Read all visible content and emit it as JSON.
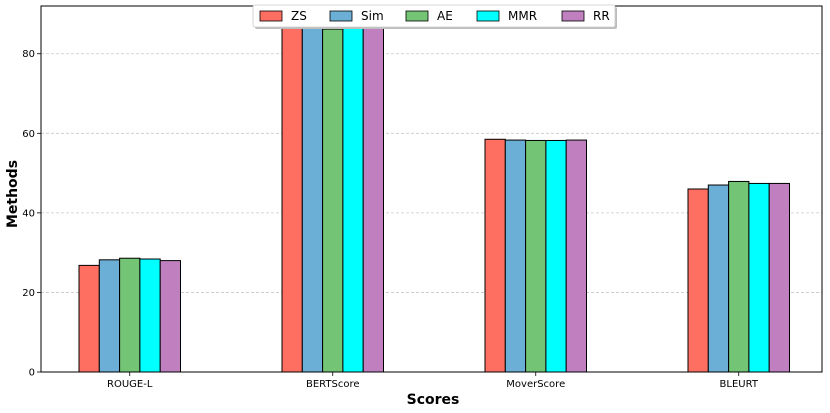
{
  "chart_data": {
    "type": "bar",
    "title": "",
    "xlabel": "Scores",
    "ylabel": "Methods",
    "categories": [
      "ROUGE-L",
      "BERTScore",
      "MoverScore",
      "BLEURT"
    ],
    "series": [
      {
        "name": "ZS",
        "color": "#ff6f61",
        "values": [
          26.8,
          88.0,
          58.5,
          46.0
        ]
      },
      {
        "name": "Sim",
        "color": "#6baed6",
        "values": [
          28.2,
          86.8,
          58.3,
          47.0
        ]
      },
      {
        "name": "AE",
        "color": "#74c476",
        "values": [
          28.6,
          86.2,
          58.2,
          47.9
        ]
      },
      {
        "name": "MMR",
        "color": "#00ffff",
        "values": [
          28.4,
          88.0,
          58.2,
          47.4
        ]
      },
      {
        "name": "RR",
        "color": "#c080c0",
        "values": [
          28.0,
          87.3,
          58.3,
          47.4
        ]
      }
    ],
    "ylim": [
      0,
      92
    ],
    "yticks": [
      0,
      20,
      40,
      60,
      80
    ],
    "grid": "horizontal dashed",
    "legend_position": "top-center"
  }
}
